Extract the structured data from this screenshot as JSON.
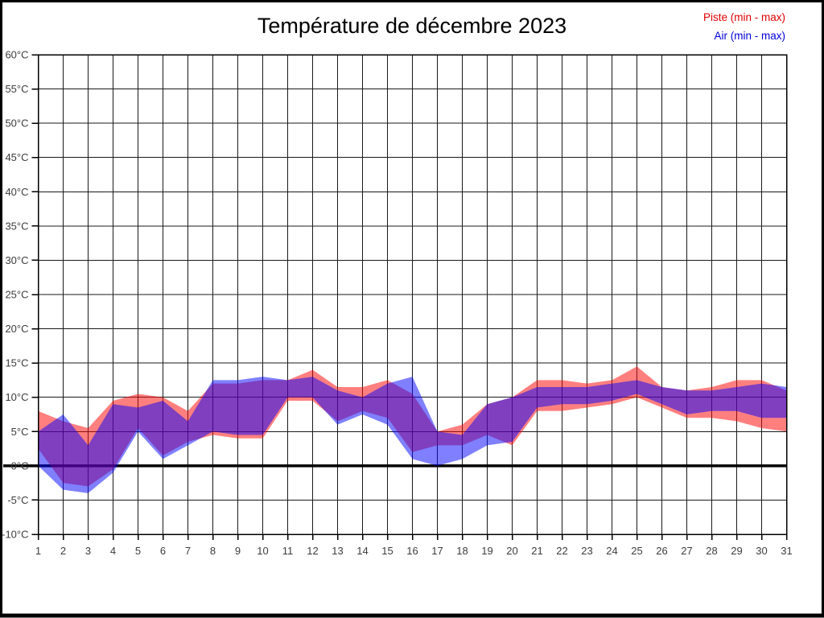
{
  "title": "Température de décembre 2023",
  "legend": {
    "piste_label": "Piste (min - max)",
    "air_label": "Air (min - max)",
    "piste_color": "#e00000",
    "air_color": "#0000dd"
  },
  "chart_data": {
    "type": "area",
    "subtype": "min-max-band",
    "title": "Température de décembre 2023",
    "xlabel": "",
    "ylabel": "",
    "grid": true,
    "legend_position": "top-right",
    "ylim": [
      -10,
      60
    ],
    "ytick_step": 5,
    "zero_line": 0,
    "y_ticks": [
      {
        "label": "60°C",
        "value": 60
      },
      {
        "label": "55°C",
        "value": 55
      },
      {
        "label": "50°C",
        "value": 50
      },
      {
        "label": "45°C",
        "value": 45
      },
      {
        "label": "40°C",
        "value": 40
      },
      {
        "label": "35°C",
        "value": 35
      },
      {
        "label": "30°C",
        "value": 30
      },
      {
        "label": "25°C",
        "value": 25
      },
      {
        "label": "20°C",
        "value": 20
      },
      {
        "label": "15°C",
        "value": 15
      },
      {
        "label": "10°C",
        "value": 10
      },
      {
        "label": "5°C",
        "value": 5
      },
      {
        "label": "0°C",
        "value": 0
      },
      {
        "label": "-5°C",
        "value": -5
      },
      {
        "label": "-10°C",
        "value": -10
      }
    ],
    "x": [
      1,
      2,
      3,
      4,
      5,
      6,
      7,
      8,
      9,
      10,
      11,
      12,
      13,
      14,
      15,
      16,
      17,
      18,
      19,
      20,
      21,
      22,
      23,
      24,
      25,
      26,
      27,
      28,
      29,
      30,
      31
    ],
    "series": [
      {
        "name": "Piste (min - max)",
        "band_name": "piste-band",
        "fill_rgba": "rgba(255,0,0,0.5)",
        "min": [
          2.5,
          -2.5,
          -3,
          -0.5,
          5.5,
          1.5,
          3.5,
          4.5,
          4,
          4,
          9.5,
          9.5,
          6.5,
          8,
          7,
          2,
          3,
          3,
          4.5,
          3,
          8,
          8,
          8.5,
          9,
          10,
          8.5,
          7,
          7,
          6.5,
          5.5,
          5
        ],
        "max": [
          8,
          6.5,
          5.5,
          9.5,
          10.5,
          10,
          8,
          12,
          12,
          12.5,
          12.5,
          14,
          11.5,
          11.5,
          12.5,
          10.5,
          5,
          6,
          9,
          10,
          12.5,
          12.5,
          12,
          12.5,
          14.5,
          11.5,
          11,
          11.5,
          12.5,
          12.5,
          11
        ]
      },
      {
        "name": "Air (min - max)",
        "band_name": "air-band",
        "fill_rgba": "rgba(0,0,255,0.5)",
        "min": [
          0,
          -3.5,
          -4,
          -1,
          5,
          1,
          3,
          5,
          4.5,
          4.5,
          10,
          10,
          6,
          7.5,
          6,
          1,
          0,
          1,
          3,
          3.5,
          8.5,
          9,
          9,
          9.5,
          10.5,
          9,
          7.5,
          8,
          8,
          7,
          7
        ],
        "max": [
          5,
          7.5,
          3,
          9,
          8.5,
          9.5,
          6.5,
          12.5,
          12.5,
          13,
          12.5,
          13,
          11,
          10,
          12,
          13,
          5,
          4.5,
          9,
          10,
          11.5,
          11.5,
          11.5,
          12,
          12.5,
          11.5,
          11,
          11,
          11.5,
          12,
          11.5
        ]
      }
    ]
  }
}
